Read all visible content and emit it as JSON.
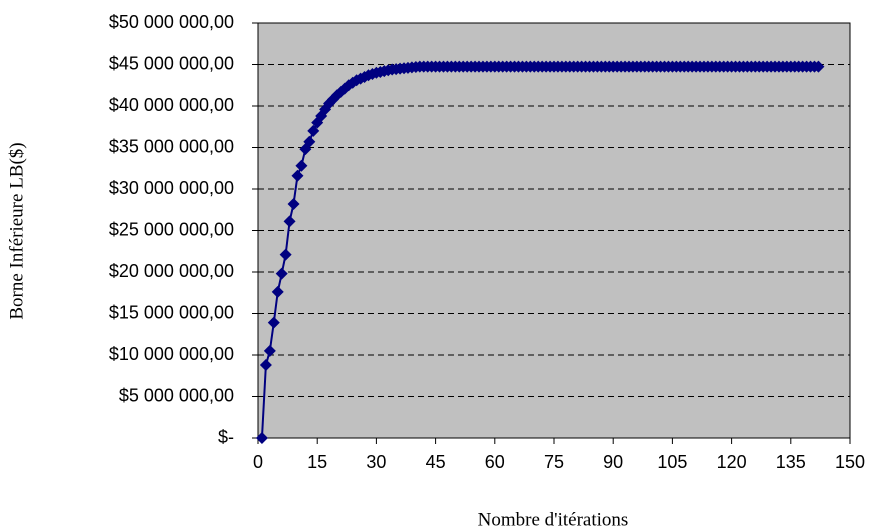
{
  "chart_data": {
    "type": "line",
    "xlabel": "Nombre d'itérations",
    "ylabel": "Borne Inférieure LB($)",
    "xlim": [
      0,
      150
    ],
    "xticks": [
      0,
      15,
      30,
      45,
      60,
      75,
      90,
      105,
      120,
      135,
      150
    ],
    "ylim": [
      0,
      50000000
    ],
    "yticks": [
      {
        "value": 0,
        "label": "$-"
      },
      {
        "value": 5000000,
        "label": "$5 000 000,00"
      },
      {
        "value": 10000000,
        "label": "$10 000 000,00"
      },
      {
        "value": 15000000,
        "label": "$15 000 000,00"
      },
      {
        "value": 20000000,
        "label": "$20 000 000,00"
      },
      {
        "value": 25000000,
        "label": "$25 000 000,00"
      },
      {
        "value": 30000000,
        "label": "$30 000 000,00"
      },
      {
        "value": 35000000,
        "label": "$35 000 000,00"
      },
      {
        "value": 40000000,
        "label": "$40 000 000,00"
      },
      {
        "value": 45000000,
        "label": "$45 000 000,00"
      },
      {
        "value": 50000000,
        "label": "$50 000 000,00"
      }
    ],
    "grid": true,
    "background": "#c0c0c0",
    "color": "#000080",
    "x": [
      1,
      2,
      3,
      4,
      5,
      6,
      7,
      8,
      9,
      10,
      11,
      12,
      13,
      14,
      15,
      16,
      17,
      18,
      19,
      20,
      21,
      22,
      23,
      24,
      25,
      26,
      27,
      28,
      29,
      30,
      31,
      32,
      33,
      34,
      35,
      36,
      37,
      38,
      39,
      40,
      41,
      42,
      43,
      44,
      45,
      46,
      47,
      48,
      49,
      50,
      51,
      52,
      53,
      54,
      55,
      56,
      57,
      58,
      59,
      60,
      61,
      62,
      63,
      64,
      65,
      66,
      67,
      68,
      69,
      70,
      71,
      72,
      73,
      74,
      75,
      76,
      77,
      78,
      79,
      80,
      81,
      82,
      83,
      84,
      85,
      86,
      87,
      88,
      89,
      90,
      91,
      92,
      93,
      94,
      95,
      96,
      97,
      98,
      99,
      100,
      101,
      102,
      103,
      104,
      105,
      106,
      107,
      108,
      109,
      110,
      111,
      112,
      113,
      114,
      115,
      116,
      117,
      118,
      119,
      120,
      121,
      122,
      123,
      124,
      125,
      126,
      127,
      128,
      129,
      130,
      131,
      132,
      133,
      134,
      135,
      136,
      137,
      138,
      139,
      140,
      141,
      142
    ],
    "values": [
      0,
      8800000,
      10500000,
      13900000,
      17600000,
      19800000,
      22100000,
      26100000,
      28200000,
      31600000,
      32800000,
      34800000,
      35700000,
      37000000,
      38000000,
      38800000,
      39600000,
      40300000,
      40800000,
      41300000,
      41700000,
      42100000,
      42500000,
      42800000,
      43100000,
      43300000,
      43500000,
      43700000,
      43850000,
      44000000,
      44100000,
      44200000,
      44300000,
      44400000,
      44450000,
      44500000,
      44550000,
      44600000,
      44650000,
      44700000,
      44750000,
      44750000,
      44750000,
      44750000,
      44750000,
      44750000,
      44750000,
      44750000,
      44750000,
      44750000,
      44750000,
      44750000,
      44750000,
      44750000,
      44750000,
      44750000,
      44750000,
      44750000,
      44750000,
      44750000,
      44750000,
      44750000,
      44750000,
      44750000,
      44750000,
      44750000,
      44750000,
      44750000,
      44750000,
      44750000,
      44750000,
      44750000,
      44750000,
      44750000,
      44750000,
      44750000,
      44750000,
      44750000,
      44750000,
      44750000,
      44750000,
      44750000,
      44750000,
      44750000,
      44750000,
      44750000,
      44750000,
      44750000,
      44750000,
      44750000,
      44750000,
      44750000,
      44750000,
      44750000,
      44750000,
      44750000,
      44750000,
      44750000,
      44750000,
      44750000,
      44750000,
      44750000,
      44750000,
      44750000,
      44750000,
      44750000,
      44750000,
      44750000,
      44750000,
      44750000,
      44750000,
      44750000,
      44750000,
      44750000,
      44750000,
      44750000,
      44750000,
      44750000,
      44750000,
      44750000,
      44750000,
      44750000,
      44750000,
      44750000,
      44750000,
      44750000,
      44750000,
      44750000,
      44750000,
      44750000,
      44750000,
      44750000,
      44750000,
      44750000,
      44750000,
      44750000,
      44750000,
      44750000,
      44750000,
      44750000,
      44750000,
      44750000
    ]
  }
}
